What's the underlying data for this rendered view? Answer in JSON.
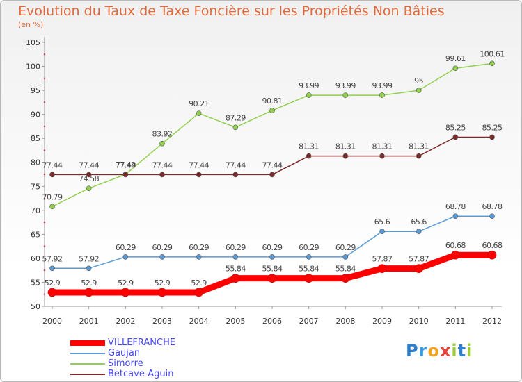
{
  "header": {
    "title": "Evolution du Taux de Taxe Foncière sur les Propriétés Non Bâties",
    "subtitle": "(en %)"
  },
  "logo": {
    "text": "Proxiti",
    "letters": [
      {
        "ch": "P",
        "color": "#2e7fd0"
      },
      {
        "ch": "r",
        "color": "#3b9be0"
      },
      {
        "ch": "o",
        "color": "#f2a21e"
      },
      {
        "ch": "x",
        "color": "#e8433a"
      },
      {
        "ch": "i",
        "color": "#9ccc3c"
      },
      {
        "ch": "t",
        "color": "#2e7fd0"
      },
      {
        "ch": "i",
        "color": "#9ccc3c"
      }
    ]
  },
  "chart_data": {
    "type": "line",
    "title": "Evolution du Taux de Taxe Foncière sur les Propriétés Non Bâties",
    "ylabel": "(en %)",
    "xlabel": "",
    "x": [
      "2000",
      "2001",
      "2002",
      "2003",
      "2004",
      "2005",
      "2006",
      "2007",
      "2008",
      "2009",
      "2010",
      "2011",
      "2012"
    ],
    "ylim": [
      50,
      105
    ],
    "yticks": [
      50,
      55,
      60,
      65,
      70,
      75,
      80,
      85,
      90,
      95,
      100,
      105
    ],
    "grid": false,
    "legend": "bottom-left",
    "series": [
      {
        "name": "VILLEFRANCHE",
        "color": "#ff0000",
        "legend_color": "#4444ff",
        "highlight": true,
        "values": [
          52.9,
          52.9,
          52.9,
          52.9,
          52.9,
          55.84,
          55.84,
          55.84,
          55.84,
          57.87,
          57.87,
          60.68,
          60.68
        ],
        "labels": [
          "52.9",
          "52.9",
          "52.9",
          "52.9",
          "52.9",
          "55.84",
          "55.84",
          "55.84",
          "55.84",
          "57.87",
          "57.87",
          "60.68",
          "60.68"
        ]
      },
      {
        "name": "Gaujan",
        "color": "#5b9bd5",
        "legend_color": "#4444ff",
        "highlight": false,
        "values": [
          57.92,
          57.92,
          60.29,
          60.29,
          60.29,
          60.29,
          60.29,
          60.29,
          60.29,
          65.6,
          65.6,
          68.78,
          68.78
        ],
        "labels": [
          "57.92",
          "57.92",
          "60.29",
          "60.29",
          "60.29",
          "60.29",
          "60.29",
          "60.29",
          "60.29",
          "65.6",
          "65.6",
          "68.78",
          "68.78"
        ]
      },
      {
        "name": "Simorre",
        "color": "#92d050",
        "legend_color": "#4444ff",
        "highlight": false,
        "values": [
          70.79,
          74.58,
          77.49,
          83.92,
          90.21,
          87.29,
          90.81,
          93.99,
          93.99,
          93.99,
          95,
          99.61,
          100.61
        ],
        "labels": [
          "70.79",
          "74.58",
          "77.49",
          "83.92",
          "90.21",
          "87.29",
          "90.81",
          "93.99",
          "93.99",
          "93.99",
          "95",
          "99.61",
          "100.61"
        ]
      },
      {
        "name": "Betcave-Aguin",
        "color": "#7b2a2a",
        "legend_color": "#4444ff",
        "highlight": false,
        "values": [
          77.44,
          77.44,
          77.44,
          77.44,
          77.44,
          77.44,
          77.44,
          81.31,
          81.31,
          81.31,
          81.31,
          85.25,
          85.25
        ],
        "labels": [
          "77.44",
          "77.44",
          "77.44",
          "77.44",
          "77.44",
          "77.44",
          "77.44",
          "81.31",
          "81.31",
          "81.31",
          "81.31",
          "85.25",
          "85.25"
        ]
      }
    ]
  }
}
